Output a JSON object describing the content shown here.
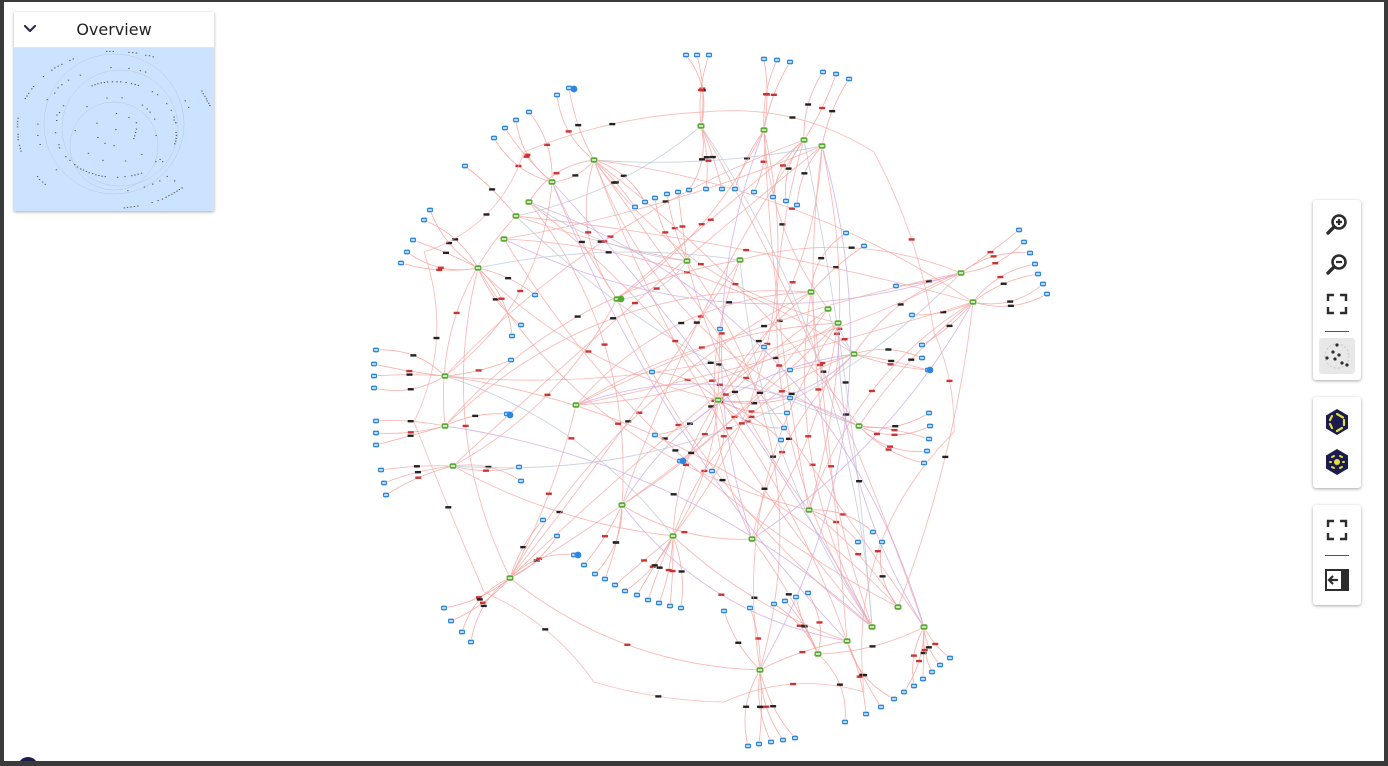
{
  "overview": {
    "title": "Overview",
    "collapse_icon": "chevron-down-icon"
  },
  "toolbar": {
    "zoom_in_icon": "zoom-in-icon",
    "zoom_out_icon": "zoom-out-icon",
    "fit_icon": "fit-to-screen-icon",
    "layout_icon": "graph-layout-icon",
    "hexagon_layout_icon": "hexagon-layout-icon",
    "hexagon_center_icon": "hexagon-center-icon",
    "fullscreen_icon": "fullscreen-icon",
    "exit_panel_icon": "exit-panel-icon"
  },
  "colors": {
    "edge_primary": "#f7a6a1",
    "edge_secondary": "#c9a6e6",
    "edge_tertiary": "#b8c6d6",
    "node_blue": "#2e86de",
    "node_green": "#5aa832",
    "overview_bg": "#cce3ff",
    "toolbar_icon": "#2d2d2d",
    "hex_dark": "#1c1b4d",
    "hex_accent": "#e0e040"
  }
}
